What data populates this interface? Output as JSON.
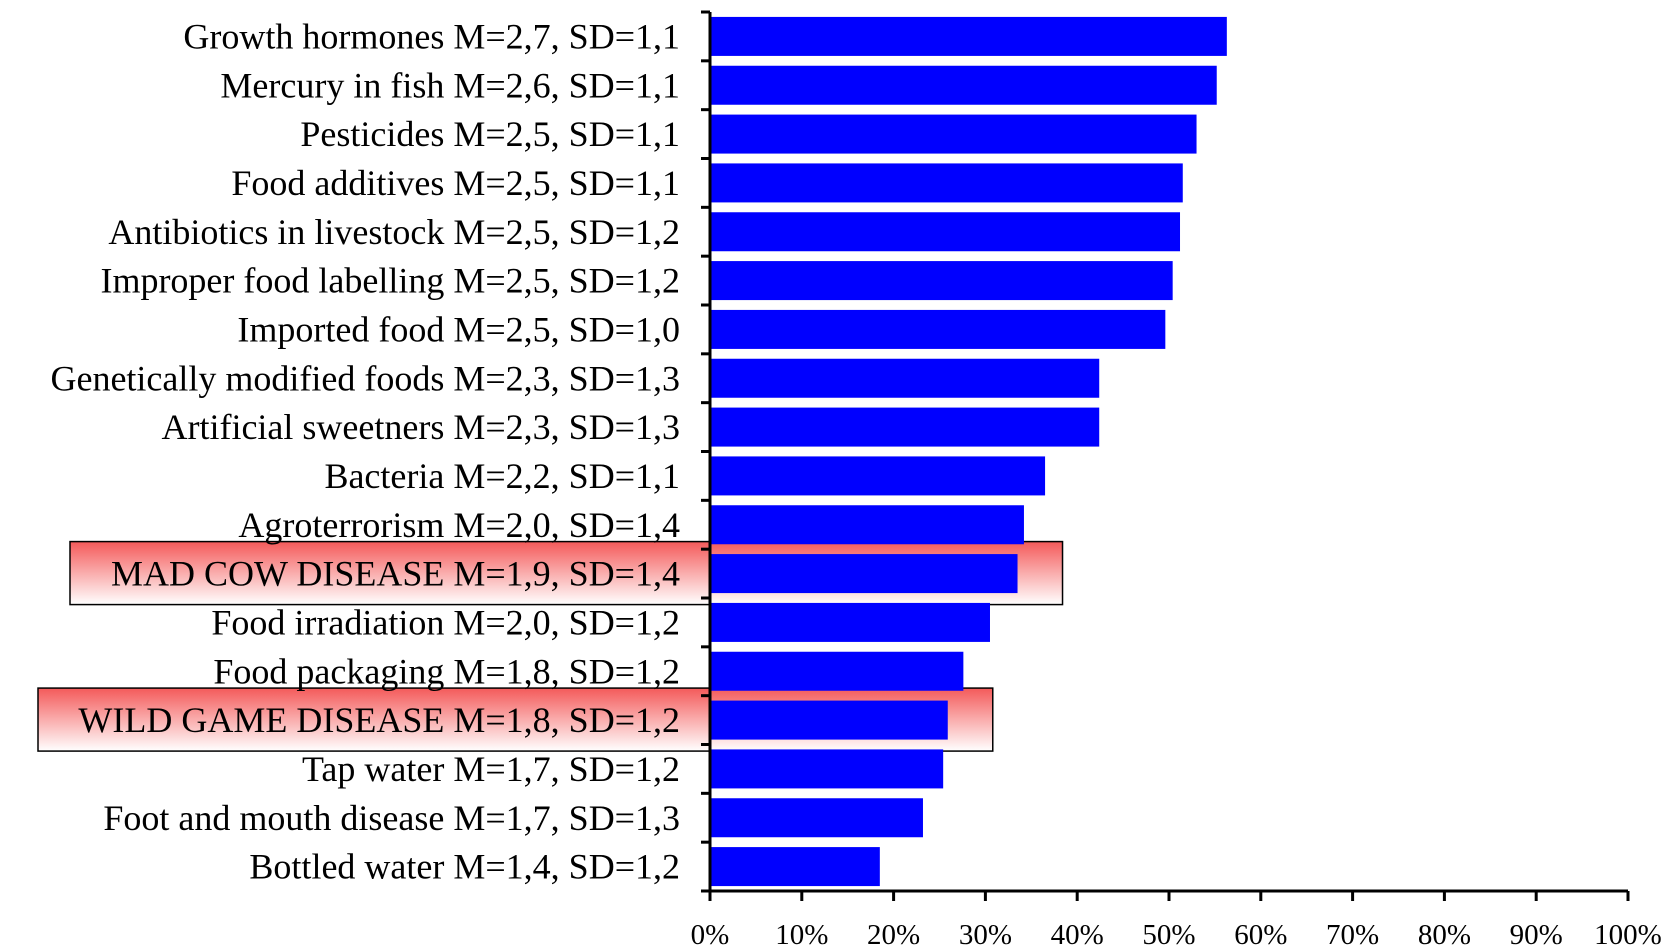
{
  "chart_data": {
    "type": "bar",
    "orientation": "horizontal",
    "categories": [
      "Growth hormones M=2,7, SD=1,1",
      "Mercury in fish M=2,6, SD=1,1",
      "Pesticides M=2,5, SD=1,1",
      "Food additives M=2,5, SD=1,1",
      "Antibiotics in livestock M=2,5, SD=1,2",
      "Improper food labelling M=2,5, SD=1,2",
      "Imported food M=2,5, SD=1,0",
      "Genetically modified foods M=2,3, SD=1,3",
      "Artificial sweetners M=2,3, SD=1,3",
      "Bacteria M=2,2, SD=1,1",
      "Agroterrorism M=2,0, SD=1,4",
      "MAD COW DISEASE M=1,9, SD=1,4",
      "Food irradiation M=2,0, SD=1,2",
      "Food packaging M=1,8, SD=1,2",
      "WILD GAME DISEASE M=1,8, SD=1,2",
      "Tap water M=1,7, SD=1,2",
      "Foot and mouth disease M=1,7, SD=1,3",
      "Bottled water M=1,4, SD=1,2"
    ],
    "values": [
      56.3,
      55.2,
      53.0,
      51.5,
      51.2,
      50.4,
      49.6,
      42.4,
      42.4,
      36.5,
      34.2,
      33.5,
      30.5,
      27.6,
      25.9,
      25.4,
      23.2,
      18.5
    ],
    "highlighted": [
      "MAD COW DISEASE M=1,9, SD=1,4",
      "WILD GAME DISEASE M=1,8, SD=1,2"
    ],
    "xlim": [
      0,
      100
    ],
    "xticks": [
      "0%",
      "10%",
      "20%",
      "30%",
      "40%",
      "50%",
      "60%",
      "70%",
      "80%",
      "90%",
      "100%"
    ],
    "title": "",
    "xlabel": "",
    "ylabel": "",
    "grid": false,
    "bar_color": "#0000FF",
    "highlight_color": "#F45A5A"
  }
}
